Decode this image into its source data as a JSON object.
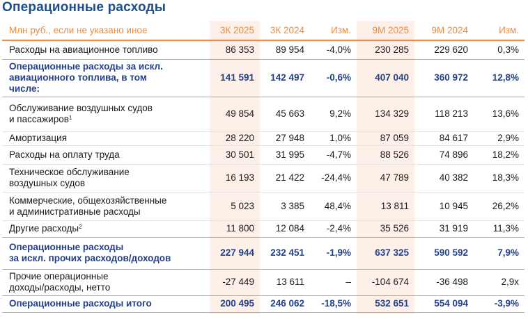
{
  "page": {
    "title": "Операционные расходы"
  },
  "table": {
    "headers": [
      "Млн руб., если не указано иное",
      "3К 2025",
      "3К 2024",
      "Изм.",
      "9М 2025",
      "9М 2024",
      "Изм."
    ],
    "rows": [
      {
        "label": "Расходы на авиационное топливо",
        "sup": "",
        "q3_2025": "86 353",
        "q3_2024": "89 954",
        "q_change": "-4,0%",
        "m9_2025": "230 285",
        "m9_2024": "229 620",
        "m9_change": "0,3%",
        "bold": false
      },
      {
        "label": "Операционные расходы за искл. авиационного топлива, в том числе:",
        "sup": "",
        "q3_2025": "141 591",
        "q3_2024": "142 497",
        "q_change": "-0,6%",
        "m9_2025": "407 040",
        "m9_2024": "360 972",
        "m9_change": "12,8%",
        "bold": true
      },
      {
        "label": "Обслуживание воздушных судов и пассажиров",
        "sup": "1",
        "q3_2025": "49 854",
        "q3_2024": "45 663",
        "q_change": "9,2%",
        "m9_2025": "134 329",
        "m9_2024": "118 213",
        "m9_change": "13,6%",
        "bold": false
      },
      {
        "label": "Амортизация",
        "sup": "",
        "q3_2025": "28 220",
        "q3_2024": "27 948",
        "q_change": "1,0%",
        "m9_2025": "87 059",
        "m9_2024": "84 617",
        "m9_change": "2,9%",
        "bold": false
      },
      {
        "label": "Расходы на оплату труда",
        "sup": "",
        "q3_2025": "30 501",
        "q3_2024": "31 995",
        "q_change": "-4,7%",
        "m9_2025": "88 526",
        "m9_2024": "74 896",
        "m9_change": "18,2%",
        "bold": false
      },
      {
        "label": "Техническое обслуживание воздушных судов",
        "sup": "",
        "q3_2025": "16 193",
        "q3_2024": "21 422",
        "q_change": "-24,4%",
        "m9_2025": "47 789",
        "m9_2024": "40 382",
        "m9_change": "18,3%",
        "bold": false
      },
      {
        "label": "Коммерческие, общехозяйственные и административные расходы",
        "sup": "",
        "q3_2025": "5 023",
        "q3_2024": "3 385",
        "q_change": "48,4%",
        "m9_2025": "13 811",
        "m9_2024": "10 945",
        "m9_change": "26,2%",
        "bold": false
      },
      {
        "label": "Другие расходы",
        "sup": "2",
        "q3_2025": "11 800",
        "q3_2024": "12 084",
        "q_change": "-2,4%",
        "m9_2025": "35 526",
        "m9_2024": "31 919",
        "m9_change": "11,3%",
        "bold": false
      },
      {
        "label": "Операционные расходы за искл. прочих расходов/доходов",
        "sup": "",
        "q3_2025": "227 944",
        "q3_2024": "232 451",
        "q_change": "-1,9%",
        "m9_2025": "637 325",
        "m9_2024": "590 592",
        "m9_change": "7,9%",
        "bold": true
      },
      {
        "label": "Прочие операционные доходы/расходы, нетто",
        "sup": "",
        "q3_2025": "-27 449",
        "q3_2024": "13 611",
        "q_change": "–",
        "m9_2025": "-104 674",
        "m9_2024": "-36 498",
        "m9_change": "2,9x",
        "bold": false
      },
      {
        "label": "Операционные расходы итого",
        "sup": "",
        "q3_2025": "200 495",
        "q3_2024": "246 062",
        "q_change": "-18,5%",
        "m9_2025": "532 651",
        "m9_2024": "554 094",
        "m9_change": "-3,9%",
        "bold": true
      }
    ],
    "label_lines": [
      [
        "Расходы на авиационное топливо"
      ],
      [
        "Операционные расходы за искл.",
        "авиационного топлива, в том",
        "числе:"
      ],
      [
        "Обслуживание воздушных судов",
        "и пассажиров"
      ],
      [
        "Амортизация"
      ],
      [
        "Расходы на оплату труда"
      ],
      [
        "Техническое обслуживание",
        "воздушных судов"
      ],
      [
        "Коммерческие, общехозяйственные",
        "и административные расходы"
      ],
      [
        "Другие расходы"
      ],
      [
        "Операционные расходы",
        "за искл. прочих расходов/доходов"
      ],
      [
        "Прочие операционные",
        "доходы/расходы, нетто"
      ],
      [
        "Операционные расходы итого"
      ]
    ]
  },
  "colors": {
    "title_blue": "#1f4e8c",
    "header_orange": "#f08a3c",
    "bold_row_blue": "#23418a",
    "highlight_column_bg": "#fdf0e8"
  }
}
